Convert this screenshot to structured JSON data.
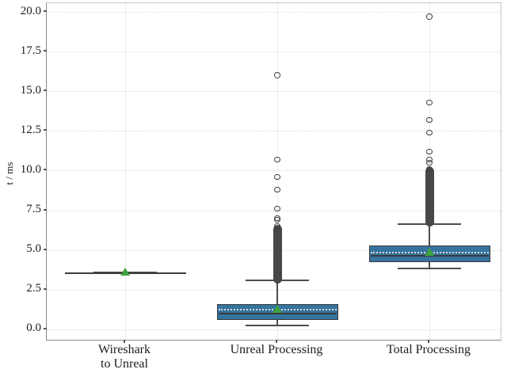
{
  "chart_data": {
    "type": "boxplot",
    "title": "",
    "xlabel": "",
    "ylabel": "t / ms",
    "ylim": [
      -0.65,
      20.55
    ],
    "yticks": [
      0.0,
      2.5,
      5.0,
      7.5,
      10.0,
      12.5,
      15.0,
      17.5,
      20.0
    ],
    "ytick_labels": [
      "0.0",
      "2.5",
      "5.0",
      "7.5",
      "10.0",
      "12.5",
      "15.0",
      "17.5",
      "20.0"
    ],
    "grid": "dotted horizontal at yticks and vertical at category centers",
    "legend": "none",
    "categories": [
      "Wireshark to Unreal",
      "Unreal Processing",
      "Total Processing"
    ],
    "category_label_lines": [
      [
        "Wireshark",
        "to Unreal"
      ],
      [
        "Unreal Processing"
      ],
      [
        "Total Processing"
      ]
    ],
    "boxes": [
      {
        "category": "Wireshark to Unreal",
        "q1": 3.6,
        "median": 3.6,
        "q3": 3.6,
        "whisker_low": 3.6,
        "whisker_high": 3.6,
        "mean": 3.6,
        "outliers": [],
        "dense_outlier_range": null
      },
      {
        "category": "Unreal Processing",
        "q1": 0.6,
        "median": 1.0,
        "q3": 1.6,
        "whisker_low": 0.25,
        "whisker_high": 3.1,
        "mean": 1.25,
        "outliers": [
          6.5,
          6.9,
          7.0,
          7.6,
          8.8,
          9.6,
          10.7,
          16.0
        ],
        "dense_outlier_range": [
          3.1,
          6.4
        ]
      },
      {
        "category": "Total Processing",
        "q1": 4.25,
        "median": 4.65,
        "q3": 5.3,
        "whisker_low": 3.85,
        "whisker_high": 6.65,
        "mean": 4.85,
        "outliers": [
          10.1,
          10.5,
          10.7,
          11.2,
          12.4,
          13.2,
          14.3,
          19.7
        ],
        "dense_outlier_range": [
          6.7,
          10.0
        ]
      }
    ],
    "colors": {
      "box_fill": "#35749e",
      "box_edge": "#3b3b3b",
      "whisker": "#4d4d4d",
      "median_line": "#3b3b3b",
      "mean_marker_green": "#3fa13f",
      "mean_dashed_line": "#d8d8d8",
      "outlier_edge": "#3b3b3b",
      "dense_cluster": "#474747",
      "grid": "#dcdcdc",
      "text": "#1c1c1c"
    }
  }
}
